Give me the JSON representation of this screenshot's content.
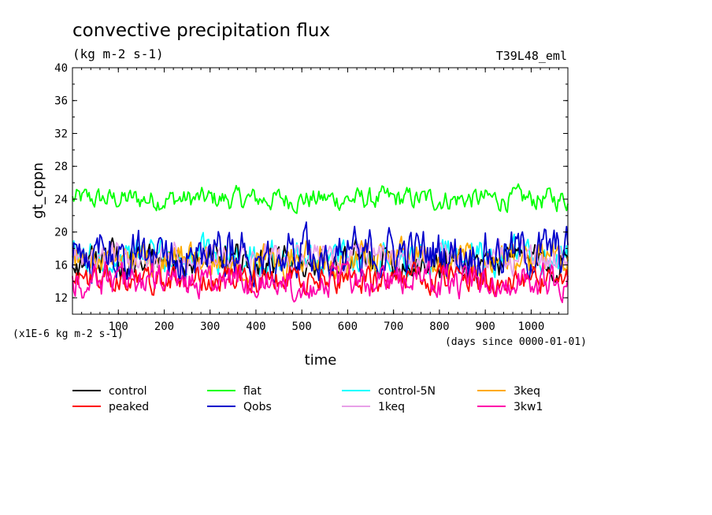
{
  "chart_data": {
    "type": "line",
    "title": "convective precipitation flux",
    "subtitle": "(kg m-2 s-1)",
    "experiment_label": "T39L48_eml",
    "ylabel": "gt_cppn",
    "xlabel": "time",
    "y_unit_note": "(x1E-6 kg m-2 s-1)",
    "x_unit_note": "(days since 0000-01-01)",
    "xlim": [
      0,
      1080
    ],
    "ylim": [
      10,
      40
    ],
    "x_ticks": [
      "100",
      "200",
      "300",
      "400",
      "500",
      "600",
      "700",
      "800",
      "900",
      "1000"
    ],
    "y_ticks": [
      "12",
      "16",
      "20",
      "24",
      "28",
      "32",
      "36",
      "40"
    ],
    "grid": false,
    "legend_position": "bottom",
    "series": [
      {
        "name": "control",
        "color": "#000000",
        "mean": 16.5,
        "amplitude": 1.5
      },
      {
        "name": "flat",
        "color": "#00ff00",
        "mean": 24.0,
        "amplitude": 1.0
      },
      {
        "name": "control-5N",
        "color": "#00ffff",
        "mean": 17.0,
        "amplitude": 1.5
      },
      {
        "name": "3keq",
        "color": "#ffaa00",
        "mean": 16.8,
        "amplitude": 1.5
      },
      {
        "name": "peaked",
        "color": "#ff0000",
        "mean": 14.2,
        "amplitude": 1.2
      },
      {
        "name": "Qobs",
        "color": "#0000cc",
        "mean": 17.5,
        "amplitude": 2.2
      },
      {
        "name": "1keq",
        "color": "#e8a0e8",
        "mean": 16.8,
        "amplitude": 1.4
      },
      {
        "name": "3kw1",
        "color": "#ff00aa",
        "mean": 14.0,
        "amplitude": 1.5
      }
    ]
  }
}
